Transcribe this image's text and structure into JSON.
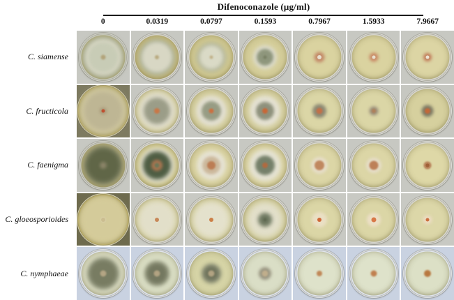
{
  "figure": {
    "title": "Difenoconazole (μg/ml)",
    "concentrations": [
      "0",
      "0.0319",
      "0.0797",
      "0.1593",
      "0.7967",
      "1.5933",
      "7.9667"
    ],
    "species": [
      "C.  siamense",
      "C.  fructicola",
      "C.  faenigma",
      "C. gloeosporioides",
      "C. nymphaeae"
    ],
    "colors": {
      "text": "#111111",
      "rule": "#1b1b1b",
      "background": "#ffffff"
    }
  },
  "grid": {
    "rows": [
      {
        "species": "C.  siamense",
        "bg": "#c7c8c2",
        "rim": "#d8d7cf",
        "cells": [
          {
            "agar": "#c8bc7e",
            "layers": [
              [
                62,
                "#a2a890",
                4
              ],
              [
                54,
                "#d4d4c0",
                3
              ],
              [
                42,
                "#c8ccb6",
                2
              ],
              [
                7,
                "#b2a37a",
                1
              ]
            ]
          },
          {
            "agar": "#cbbf82",
            "layers": [
              [
                52,
                "#a8ae96",
                4
              ],
              [
                44,
                "#d8d7c4",
                3
              ],
              [
                6,
                "#b9aa80",
                1
              ]
            ]
          },
          {
            "agar": "#d2ca92",
            "layers": [
              [
                42,
                "#b0b49c",
                4
              ],
              [
                34,
                "#dadac6",
                3
              ],
              [
                5,
                "#c0b188",
                1
              ]
            ]
          },
          {
            "agar": "#d5ce9a",
            "layers": [
              [
                34,
                "#deddce",
                3
              ],
              [
                24,
                "#8e967c",
                2
              ],
              [
                5,
                "#788064",
                1
              ]
            ]
          },
          {
            "agar": "#dad3a0",
            "layers": [
              [
                15,
                "#c38a68",
                2
              ],
              [
                6,
                "#e8e0d0",
                0
              ]
            ]
          },
          {
            "agar": "#dad3a0",
            "layers": [
              [
                13,
                "#c98a66",
                2
              ],
              [
                5,
                "#e8e0d0",
                0
              ]
            ]
          },
          {
            "agar": "#dcd5a4",
            "layers": [
              [
                12,
                "#c07a58",
                2
              ],
              [
                5,
                "#ece4d4",
                0
              ]
            ]
          }
        ]
      },
      {
        "species": "C.  fructicola",
        "bg": "#c6c7c1",
        "rim": "#d8d7cf",
        "cells": [
          {
            "bg": "#7d7a60",
            "rim": "#b3a55e",
            "dish": 76,
            "agar": "#c4ba7e",
            "layers": [
              [
                68,
                "#ccc49e",
                4
              ],
              [
                54,
                "#beb694",
                3
              ],
              [
                10,
                "#a89878",
                2
              ],
              [
                5,
                "#c05030",
                0
              ]
            ]
          },
          {
            "agar": "#d5cf9e",
            "layers": [
              [
                54,
                "#e0ddcc",
                4
              ],
              [
                38,
                "#9b9d88",
                3
              ],
              [
                8,
                "#c87848",
                1
              ]
            ]
          },
          {
            "agar": "#d6d0a0",
            "layers": [
              [
                44,
                "#e2dfd0",
                3
              ],
              [
                28,
                "#979c84",
                2
              ],
              [
                7,
                "#cc7040",
                1
              ]
            ]
          },
          {
            "agar": "#d6d0a0",
            "layers": [
              [
                44,
                "#e4e1d2",
                3
              ],
              [
                26,
                "#8e917c",
                2
              ],
              [
                8,
                "#c86838",
                1
              ]
            ]
          },
          {
            "agar": "#dbd6a6",
            "layers": [
              [
                20,
                "#8e8a74",
                2
              ],
              [
                9,
                "#c27048",
                1
              ]
            ]
          },
          {
            "agar": "#dbd6a6",
            "layers": [
              [
                13,
                "#9a8e7a",
                2
              ],
              [
                6,
                "#b08058",
                1
              ]
            ]
          },
          {
            "agar": "#d6d09e",
            "layers": [
              [
                17,
                "#7e7a64",
                2
              ],
              [
                8,
                "#c46838",
                1
              ]
            ]
          }
        ]
      },
      {
        "species": "C.  faenigma",
        "bg": "#c7c8c2",
        "rim": "#d8d7cf",
        "cells": [
          {
            "agar": "#d0c68e",
            "layers": [
              [
                58,
                "#777b5e",
                4
              ],
              [
                46,
                "#606647",
                3
              ],
              [
                10,
                "#8a8468",
                2
              ]
            ]
          },
          {
            "agar": "#d4cd96",
            "layers": [
              [
                50,
                "#dcdac8",
                3
              ],
              [
                40,
                "#4f5e44",
                3
              ],
              [
                16,
                "#a97550",
                2
              ],
              [
                7,
                "#6e7858",
                1
              ]
            ]
          },
          {
            "agar": "#dad3a2",
            "layers": [
              [
                42,
                "#e6e3d4",
                3
              ],
              [
                26,
                "#cbb79a",
                2
              ],
              [
                12,
                "#bc7d54",
                1
              ]
            ]
          },
          {
            "agar": "#dad3a2",
            "layers": [
              [
                46,
                "#e4e2d2",
                3
              ],
              [
                28,
                "#75806a",
                2
              ],
              [
                8,
                "#b06a40",
                1
              ]
            ]
          },
          {
            "agar": "#dcd6a6",
            "layers": [
              [
                24,
                "#e6ddc8",
                2
              ],
              [
                14,
                "#c08860",
                1
              ]
            ]
          },
          {
            "agar": "#dcd6a6",
            "layers": [
              [
                22,
                "#e6ddc8",
                2
              ],
              [
                13,
                "#bd8058",
                1
              ]
            ]
          },
          {
            "agar": "#ded8a7",
            "layers": [
              [
                11,
                "#b67e56",
                1
              ],
              [
                5,
                "#a06038",
                0
              ]
            ]
          }
        ]
      },
      {
        "species": "C. gloeosporioides",
        "bg": "#c8c9c3",
        "rim": "#d8d7cf",
        "cells": [
          {
            "bg": "#6e6b4e",
            "rim": "#b5a760",
            "dish": 76,
            "agar": "#cfc58e",
            "layers": [
              [
                66,
                "#d4cb9a",
                4
              ],
              [
                8,
                "#d9d0a9",
                1
              ],
              [
                6,
                "#cbbd90",
                0
              ]
            ]
          },
          {
            "agar": "#d6d1a2",
            "layers": [
              [
                54,
                "#e2dfc9",
                4
              ],
              [
                6,
                "#c88858",
                0
              ]
            ]
          },
          {
            "agar": "#d6d1a2",
            "layers": [
              [
                52,
                "#e4e1cc",
                4
              ],
              [
                6,
                "#cc8048",
                0
              ]
            ]
          },
          {
            "agar": "#d4cf9e",
            "layers": [
              [
                50,
                "#e2dfca",
                4
              ],
              [
                20,
                "#6e7860",
                3
              ],
              [
                5,
                "#5e6850",
                1
              ]
            ]
          },
          {
            "agar": "#dbd6a6",
            "layers": [
              [
                22,
                "#eadfc4",
                2
              ],
              [
                6,
                "#d06838",
                0
              ]
            ]
          },
          {
            "agar": "#dbd6a6",
            "layers": [
              [
                20,
                "#ecdfc6",
                2
              ],
              [
                7,
                "#d87848",
                0
              ]
            ]
          },
          {
            "agar": "#dcd7a8",
            "layers": [
              [
                13,
                "#ecdcc2",
                2
              ],
              [
                5,
                "#cc7040",
                0
              ]
            ]
          }
        ]
      },
      {
        "species": "C. nymphaeae",
        "bg": "#c9d2e1",
        "rim": "#dfe4ec",
        "cells": [
          {
            "agar": "#dadcc2",
            "layers": [
              [
                46,
                "#8b8f76",
                3
              ],
              [
                36,
                "#787c62",
                2
              ],
              [
                9,
                "#b4a584",
                1
              ]
            ]
          },
          {
            "agar": "#dadec4",
            "layers": [
              [
                36,
                "#878b72",
                3
              ],
              [
                26,
                "#747860",
                2
              ],
              [
                9,
                "#b2a382",
                1
              ]
            ]
          },
          {
            "agar": "#d6d4a6",
            "layers": [
              [
                28,
                "#82866e",
                3
              ],
              [
                18,
                "#70745c",
                2
              ],
              [
                9,
                "#b2a382",
                1
              ]
            ]
          },
          {
            "agar": "#dadec6",
            "layers": [
              [
                18,
                "#9a9682",
                2
              ],
              [
                9,
                "#c0ae8c",
                1
              ]
            ]
          },
          {
            "agar": "#dee2ca",
            "layers": [
              [
                8,
                "#c08858",
                1
              ]
            ]
          },
          {
            "agar": "#dee2ca",
            "layers": [
              [
                9,
                "#c08050",
                1
              ]
            ]
          },
          {
            "agar": "#dce0c6",
            "layers": [
              [
                10,
                "#b87840",
                1
              ]
            ]
          }
        ]
      }
    ]
  }
}
